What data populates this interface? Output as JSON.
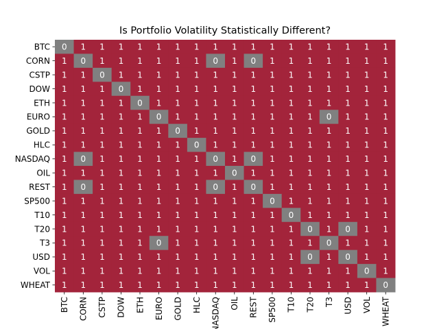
{
  "chart_data": {
    "type": "heatmap",
    "title": "Is Portfolio Volatility Statistically Different?",
    "xlabel": "",
    "ylabel": "",
    "rows": [
      "BTC",
      "CORN",
      "CSTP",
      "DOW",
      "ETH",
      "EURO",
      "GOLD",
      "HLC",
      "NASDAQ",
      "OIL",
      "REST",
      "SP500",
      "T10",
      "T20",
      "T3",
      "USD",
      "VOL",
      "WHEAT"
    ],
    "columns": [
      "BTC",
      "CORN",
      "CSTP",
      "DOW",
      "ETH",
      "EURO",
      "GOLD",
      "HLC",
      "NASDAQ",
      "OIL",
      "REST",
      "SP500",
      "T10",
      "T20",
      "T3",
      "USD",
      "VOL",
      "WHEAT"
    ],
    "values": [
      [
        0,
        1,
        1,
        1,
        1,
        1,
        1,
        1,
        1,
        1,
        1,
        1,
        1,
        1,
        1,
        1,
        1,
        1
      ],
      [
        1,
        0,
        1,
        1,
        1,
        1,
        1,
        1,
        0,
        1,
        0,
        1,
        1,
        1,
        1,
        1,
        1,
        1
      ],
      [
        1,
        1,
        0,
        1,
        1,
        1,
        1,
        1,
        1,
        1,
        1,
        1,
        1,
        1,
        1,
        1,
        1,
        1
      ],
      [
        1,
        1,
        1,
        0,
        1,
        1,
        1,
        1,
        1,
        1,
        1,
        1,
        1,
        1,
        1,
        1,
        1,
        1
      ],
      [
        1,
        1,
        1,
        1,
        0,
        1,
        1,
        1,
        1,
        1,
        1,
        1,
        1,
        1,
        1,
        1,
        1,
        1
      ],
      [
        1,
        1,
        1,
        1,
        1,
        0,
        1,
        1,
        1,
        1,
        1,
        1,
        1,
        1,
        0,
        1,
        1,
        1
      ],
      [
        1,
        1,
        1,
        1,
        1,
        1,
        0,
        1,
        1,
        1,
        1,
        1,
        1,
        1,
        1,
        1,
        1,
        1
      ],
      [
        1,
        1,
        1,
        1,
        1,
        1,
        1,
        0,
        1,
        1,
        1,
        1,
        1,
        1,
        1,
        1,
        1,
        1
      ],
      [
        1,
        0,
        1,
        1,
        1,
        1,
        1,
        1,
        0,
        1,
        0,
        1,
        1,
        1,
        1,
        1,
        1,
        1
      ],
      [
        1,
        1,
        1,
        1,
        1,
        1,
        1,
        1,
        1,
        0,
        1,
        1,
        1,
        1,
        1,
        1,
        1,
        1
      ],
      [
        1,
        0,
        1,
        1,
        1,
        1,
        1,
        1,
        0,
        1,
        0,
        1,
        1,
        1,
        1,
        1,
        1,
        1
      ],
      [
        1,
        1,
        1,
        1,
        1,
        1,
        1,
        1,
        1,
        1,
        1,
        0,
        1,
        1,
        1,
        1,
        1,
        1
      ],
      [
        1,
        1,
        1,
        1,
        1,
        1,
        1,
        1,
        1,
        1,
        1,
        1,
        0,
        1,
        1,
        1,
        1,
        1
      ],
      [
        1,
        1,
        1,
        1,
        1,
        1,
        1,
        1,
        1,
        1,
        1,
        1,
        1,
        0,
        1,
        0,
        1,
        1
      ],
      [
        1,
        1,
        1,
        1,
        1,
        0,
        1,
        1,
        1,
        1,
        1,
        1,
        1,
        1,
        0,
        1,
        1,
        1
      ],
      [
        1,
        1,
        1,
        1,
        1,
        1,
        1,
        1,
        1,
        1,
        1,
        1,
        1,
        0,
        1,
        0,
        1,
        1
      ],
      [
        1,
        1,
        1,
        1,
        1,
        1,
        1,
        1,
        1,
        1,
        1,
        1,
        1,
        1,
        1,
        1,
        0,
        1
      ],
      [
        1,
        1,
        1,
        1,
        1,
        1,
        1,
        1,
        1,
        1,
        1,
        1,
        1,
        1,
        1,
        1,
        1,
        0
      ]
    ],
    "colors": {
      "1": "#a3243b",
      "0": "#808080"
    },
    "legend": "none",
    "grid": false
  }
}
